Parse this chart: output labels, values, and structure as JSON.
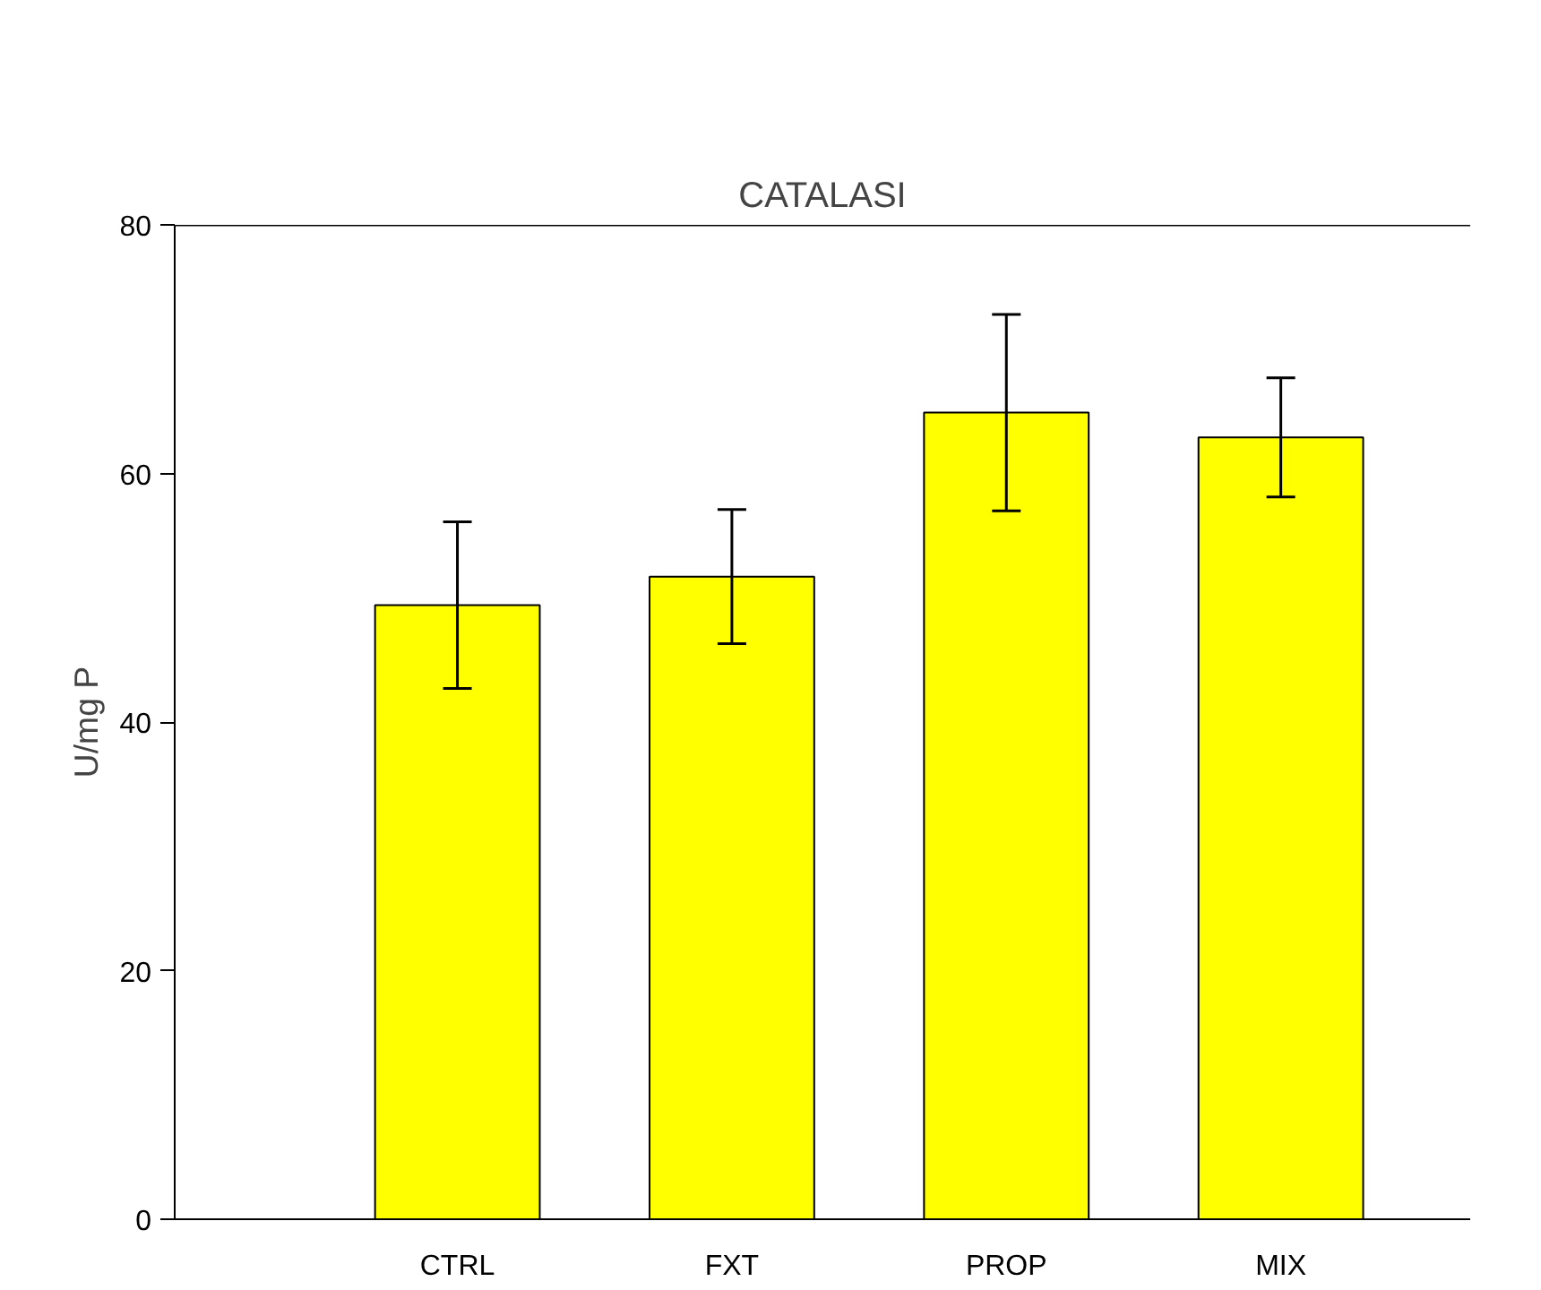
{
  "chart_data": {
    "type": "bar",
    "title": "CATALASI",
    "ylabel": "U/mg P",
    "categories": [
      "CTRL",
      "FXT",
      "PROP",
      "MIX"
    ],
    "values": [
      49.4,
      51.7,
      64.9,
      62.9
    ],
    "errors": [
      6.7,
      5.4,
      7.9,
      4.8
    ],
    "color": "#ffff00",
    "ylim": [
      0,
      80
    ],
    "yticks": [
      0,
      20,
      40,
      60,
      80
    ],
    "grid": false
  }
}
